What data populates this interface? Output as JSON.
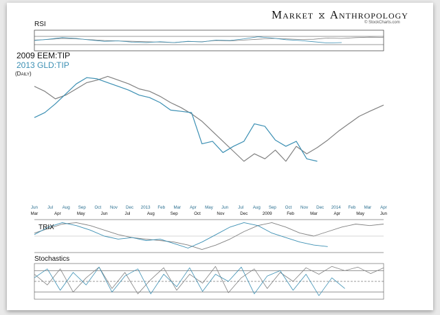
{
  "brand": {
    "name_left": "Market",
    "name_right": "Anthropology",
    "source": "© StockCharts.com",
    "logo": "dna-icon"
  },
  "panels": {
    "rsi": "RSI",
    "trix": "TRIX",
    "stochastics": "Stochastics"
  },
  "legend": {
    "series_2009": "2009 EEM:TIP",
    "series_2013": "2013 GLD:TIP",
    "period": "(Daily)"
  },
  "colors": {
    "series_2009": "#808080",
    "series_2013": "#3b8fb3",
    "refline": "#333333"
  },
  "chart_data": {
    "type": "line",
    "title": "2009 EEM:TIP vs 2013 GLD:TIP (Daily)",
    "x_axis_top": [
      "Jun",
      "Jul",
      "Aug",
      "Sep",
      "Oct",
      "Nov",
      "Dec",
      "2013",
      "Feb",
      "Mar",
      "Apr",
      "May",
      "Jun",
      "Jul",
      "Aug",
      "Sep",
      "Oct",
      "Nov",
      "Dec",
      "2014",
      "Feb",
      "Mar",
      "Apr"
    ],
    "x_axis_bottom": [
      "Mar",
      "Apr",
      "May",
      "Jun",
      "Jul",
      "Aug",
      "Sep",
      "Oct",
      "Nov",
      "Dec",
      "2009",
      "Feb",
      "Mar",
      "Apr",
      "May",
      "Jun"
    ],
    "index_range": [
      0,
      100
    ],
    "series": [
      {
        "name": "2009 EEM:TIP",
        "x": [
          0,
          3,
          6,
          9,
          12,
          15,
          18,
          21,
          24,
          27,
          30,
          33,
          36,
          39,
          42,
          45,
          48,
          51,
          54,
          57,
          60,
          63,
          66,
          69,
          72,
          75,
          78,
          81,
          84,
          87,
          90,
          93,
          96,
          100
        ],
        "values": [
          88,
          84,
          78,
          81,
          86,
          91,
          93,
          96,
          93,
          90,
          86,
          84,
          80,
          75,
          71,
          66,
          60,
          52,
          44,
          36,
          28,
          34,
          30,
          37,
          28,
          40,
          34,
          39,
          45,
          52,
          58,
          64,
          68,
          73
        ]
      },
      {
        "name": "2013 GLD:TIP",
        "x": [
          0,
          3,
          6,
          9,
          12,
          15,
          18,
          21,
          24,
          27,
          30,
          33,
          36,
          39,
          42,
          45,
          48,
          51,
          54,
          57,
          60,
          63,
          66,
          69,
          72,
          75,
          78,
          81
        ],
        "values": [
          63,
          67,
          74,
          82,
          90,
          95,
          94,
          91,
          88,
          85,
          81,
          79,
          75,
          69,
          68,
          67,
          42,
          44,
          35,
          40,
          44,
          58,
          56,
          45,
          40,
          44,
          30,
          28
        ]
      }
    ],
    "indicators": {
      "rsi": {
        "levels": [
          70,
          30
        ],
        "series_2009": [
          52,
          55,
          60,
          58,
          54,
          50,
          48,
          46,
          44,
          42,
          40,
          45,
          44,
          50,
          48,
          52,
          56,
          60,
          58,
          55,
          56,
          62,
          60,
          64,
          66,
          65
        ],
        "series_2013": [
          50,
          56,
          64,
          60,
          52,
          46,
          48,
          42,
          40,
          44,
          40,
          46,
          43,
          52,
          50,
          58,
          68,
          62,
          54,
          50,
          44,
          38,
          40
        ]
      },
      "trix": {
        "series_2009": [
          0.2,
          0.5,
          0.8,
          0.9,
          0.7,
          0.4,
          0.1,
          -0.1,
          -0.2,
          -0.3,
          -0.4,
          -0.6,
          -0.9,
          -0.6,
          -0.2,
          0.3,
          0.7,
          0.9,
          0.6,
          0.2,
          0.0,
          0.3,
          0.6,
          0.8,
          0.7,
          0.8
        ],
        "series_2013": [
          0.1,
          0.6,
          0.9,
          0.7,
          0.4,
          0.0,
          -0.2,
          -0.1,
          -0.3,
          -0.2,
          -0.5,
          -0.8,
          -0.4,
          0.1,
          0.6,
          0.9,
          0.7,
          0.2,
          -0.1,
          -0.4,
          -0.6,
          -0.7
        ]
      },
      "stochastics": {
        "levels": [
          80,
          50,
          20
        ],
        "series_2009": [
          70,
          40,
          85,
          20,
          60,
          90,
          30,
          75,
          15,
          55,
          88,
          25,
          70,
          45,
          92,
          18,
          60,
          85,
          30,
          75,
          50,
          88,
          70,
          92,
          80,
          90,
          72,
          88
        ],
        "series_2013": [
          60,
          85,
          25,
          75,
          40,
          90,
          20,
          65,
          85,
          15,
          70,
          35,
          88,
          22,
          70,
          50,
          90,
          15,
          65,
          80,
          25,
          70,
          10,
          60,
          30
        ]
      }
    }
  }
}
